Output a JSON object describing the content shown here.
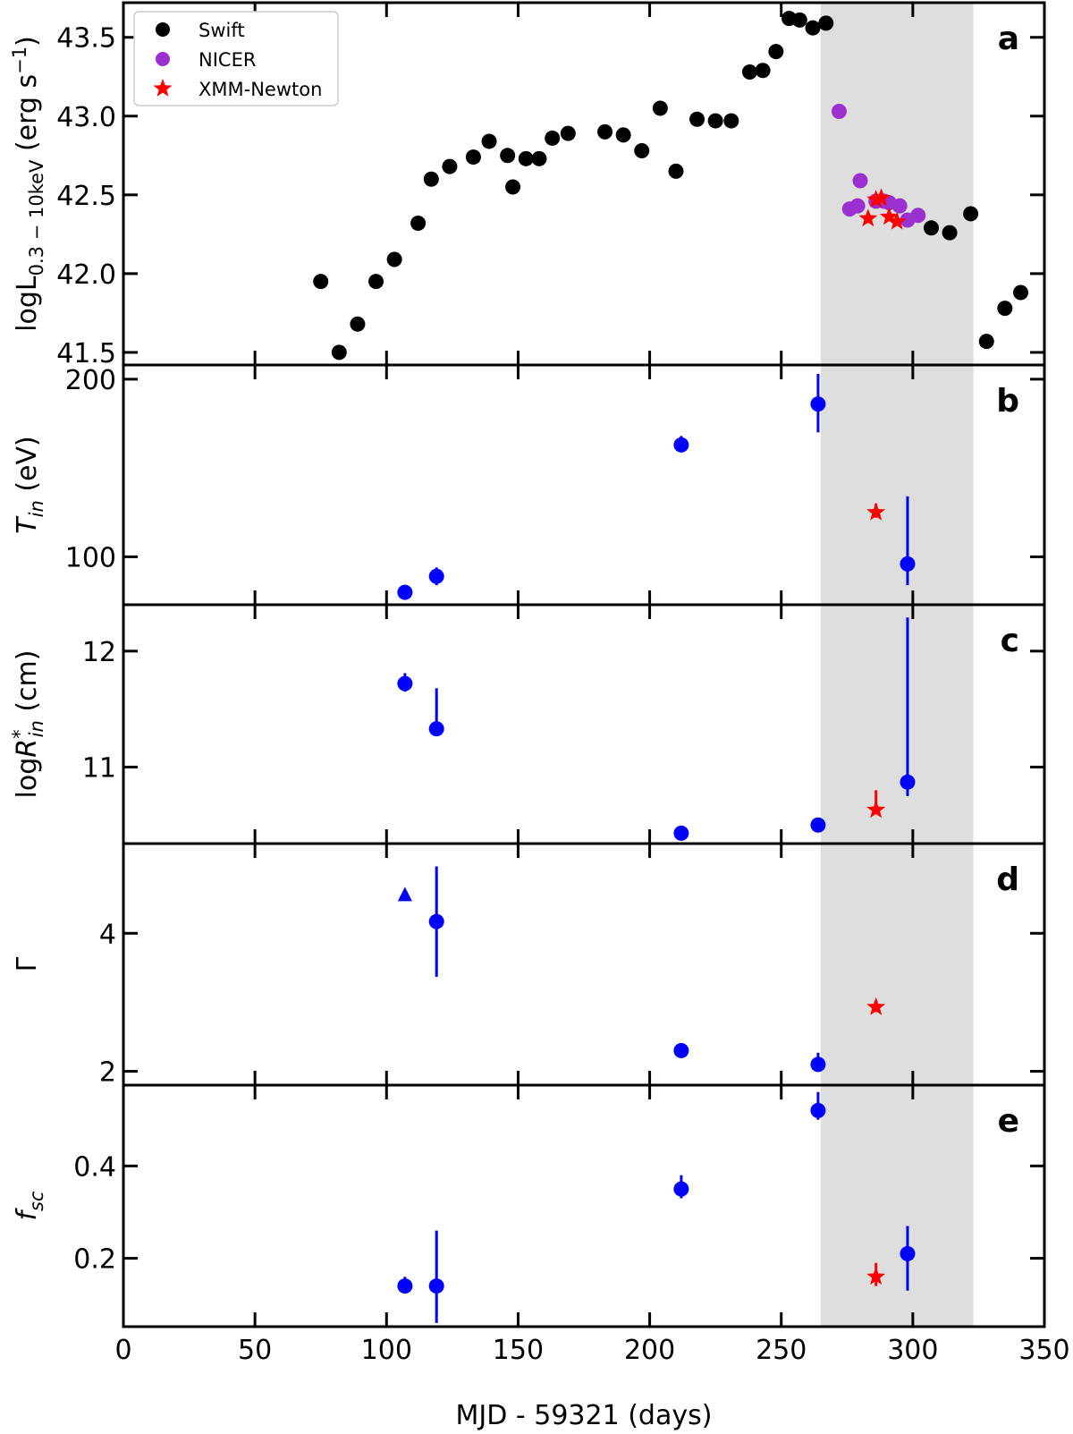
{
  "chart_data": {
    "type": "scatter",
    "xlabel": "MJD - 59321 (days)",
    "xlim": [
      0,
      350
    ],
    "xticks": [
      0,
      50,
      100,
      150,
      200,
      250,
      300,
      350
    ],
    "xtick_labels": [
      "0",
      "50",
      "100",
      "150",
      "200",
      "250",
      "300",
      "350"
    ],
    "shaded_x_range": [
      265,
      323
    ],
    "colors": {
      "swift": "#000000",
      "nicer": "#9b30d0",
      "xmm": "#ff0000",
      "fit": "#0000ff",
      "shade": "#dedede"
    },
    "panels": [
      {
        "letter": "a",
        "ylabel": "logL_{0.3-10keV} (erg s^{-1})",
        "ylabel_parts": {
          "log": "logL",
          "sub": "0.3 − 10keV",
          "unit": "(erg s",
          "exp": "−1",
          "close": ")"
        },
        "ylim": [
          41.42,
          43.72
        ],
        "yticks": [
          41.5,
          42.0,
          42.5,
          43.0,
          43.5
        ],
        "ytick_labels": [
          "41.5",
          "42.0",
          "42.5",
          "43.0",
          "43.5"
        ],
        "legend": [
          "Swift",
          "NICER",
          "XMM-Newton"
        ],
        "series": [
          {
            "name": "Swift",
            "marker": "circle",
            "color": "#000000",
            "x": [
              75,
              82,
              89,
              96,
              103,
              112,
              117,
              124,
              133,
              139,
              146,
              148,
              153,
              158,
              163,
              169,
              183,
              190,
              197,
              204,
              210,
              218,
              225,
              231,
              238,
              243,
              248,
              253,
              257,
              262,
              267,
              307,
              314,
              322,
              328,
              335,
              341
            ],
            "y": [
              41.95,
              41.5,
              41.68,
              41.95,
              42.09,
              42.32,
              42.6,
              42.68,
              42.74,
              42.84,
              42.75,
              42.55,
              42.73,
              42.73,
              42.86,
              42.89,
              42.9,
              42.88,
              42.78,
              43.05,
              42.65,
              42.98,
              42.97,
              42.97,
              43.28,
              43.29,
              43.41,
              43.62,
              43.61,
              43.56,
              43.59,
              42.29,
              42.26,
              42.38,
              41.57,
              41.78,
              41.88
            ]
          },
          {
            "name": "NICER",
            "marker": "circle",
            "color": "#9b30d0",
            "x": [
              272,
              276,
              279,
              280,
              286,
              289,
              291,
              295,
              298,
              302
            ],
            "y": [
              43.03,
              42.41,
              42.43,
              42.59,
              42.46,
              42.46,
              42.45,
              42.43,
              42.34,
              42.37
            ]
          },
          {
            "name": "XMM-Newton",
            "marker": "star",
            "color": "#ff0000",
            "x": [
              283,
              286,
              288,
              291,
              294
            ],
            "y": [
              42.35,
              42.47,
              42.48,
              42.36,
              42.33
            ]
          }
        ]
      },
      {
        "letter": "b",
        "ylabel": "T_in (eV)",
        "ylabel_parts": {
          "base": "T",
          "sub": "in",
          "unit": " (eV)"
        },
        "ylim": [
          73,
          208
        ],
        "yticks": [
          100,
          200
        ],
        "ytick_labels": [
          "100",
          "200"
        ],
        "series": [
          {
            "name": "fit",
            "marker": "circle",
            "color": "#0000ff",
            "x": [
              107,
              119,
              212,
              264,
              298
            ],
            "y": [
              80,
              89,
              163,
              186,
              96
            ],
            "err_lo": [
              1,
              5,
              4,
              16,
              12
            ],
            "err_hi": [
              1,
              5,
              5,
              17,
              38
            ]
          },
          {
            "name": "XMM-Newton",
            "marker": "star",
            "color": "#ff0000",
            "x": [
              286
            ],
            "y": [
              125
            ],
            "err_lo": [
              3
            ],
            "err_hi": [
              5
            ]
          }
        ]
      },
      {
        "letter": "c",
        "ylabel": "logR*_in (cm)",
        "ylabel_parts": {
          "base": "logR",
          "sup": "*",
          "sub": "in",
          "unit": " (cm)"
        },
        "ylim": [
          10.34,
          12.4
        ],
        "yticks": [
          11,
          12
        ],
        "ytick_labels": [
          "11",
          "12"
        ],
        "series": [
          {
            "name": "fit",
            "marker": "circle",
            "color": "#0000ff",
            "x": [
              107,
              119,
              212,
              264,
              298
            ],
            "y": [
              11.72,
              11.33,
              10.43,
              10.5,
              10.87
            ],
            "err_lo": [
              0.07,
              0.03,
              0.0,
              0.0,
              0.12
            ],
            "err_hi": [
              0.09,
              0.35,
              0.0,
              0.0,
              1.42
            ]
          },
          {
            "name": "XMM-Newton",
            "marker": "star",
            "color": "#ff0000",
            "x": [
              286
            ],
            "y": [
              10.63
            ],
            "err_lo": [
              0.03
            ],
            "err_hi": [
              0.17
            ]
          }
        ]
      },
      {
        "letter": "d",
        "ylabel": "Γ",
        "ylim": [
          1.8,
          5.3
        ],
        "yticks": [
          2,
          4
        ],
        "ytick_labels": [
          "2",
          "4"
        ],
        "series": [
          {
            "name": "fit",
            "marker": "circle",
            "color": "#0000ff",
            "x": [
              119,
              212,
              264
            ],
            "y": [
              4.17,
              2.3,
              2.1
            ],
            "err_lo": [
              0.8,
              0.0,
              0.07
            ],
            "err_hi": [
              0.8,
              0.0,
              0.17
            ]
          },
          {
            "name": "lower limit",
            "marker": "triangle",
            "color": "#0000ff",
            "x": [
              107
            ],
            "y": [
              4.57
            ]
          },
          {
            "name": "XMM-Newton",
            "marker": "star",
            "color": "#ff0000",
            "x": [
              286
            ],
            "y": [
              2.93
            ],
            "err_lo": [
              0.07
            ],
            "err_hi": [
              0.07
            ]
          }
        ]
      },
      {
        "letter": "e",
        "ylabel": "f_sc",
        "ylabel_parts": {
          "base": "f",
          "sub": "sc"
        },
        "ylim": [
          0.052,
          0.575
        ],
        "yticks": [
          0.2,
          0.4
        ],
        "ytick_labels": [
          "0.2",
          "0.4"
        ],
        "series": [
          {
            "name": "fit",
            "marker": "circle",
            "color": "#0000ff",
            "x": [
              107,
              119,
              212,
              264,
              298
            ],
            "y": [
              0.14,
              0.14,
              0.35,
              0.52,
              0.21
            ],
            "err_lo": [
              0.01,
              0.08,
              0.02,
              0.02,
              0.08
            ],
            "err_hi": [
              0.02,
              0.12,
              0.03,
              0.04,
              0.06
            ]
          },
          {
            "name": "XMM-Newton",
            "marker": "star",
            "color": "#ff0000",
            "x": [
              286
            ],
            "y": [
              0.16
            ],
            "err_lo": [
              0.02
            ],
            "err_hi": [
              0.03
            ]
          }
        ]
      }
    ]
  }
}
